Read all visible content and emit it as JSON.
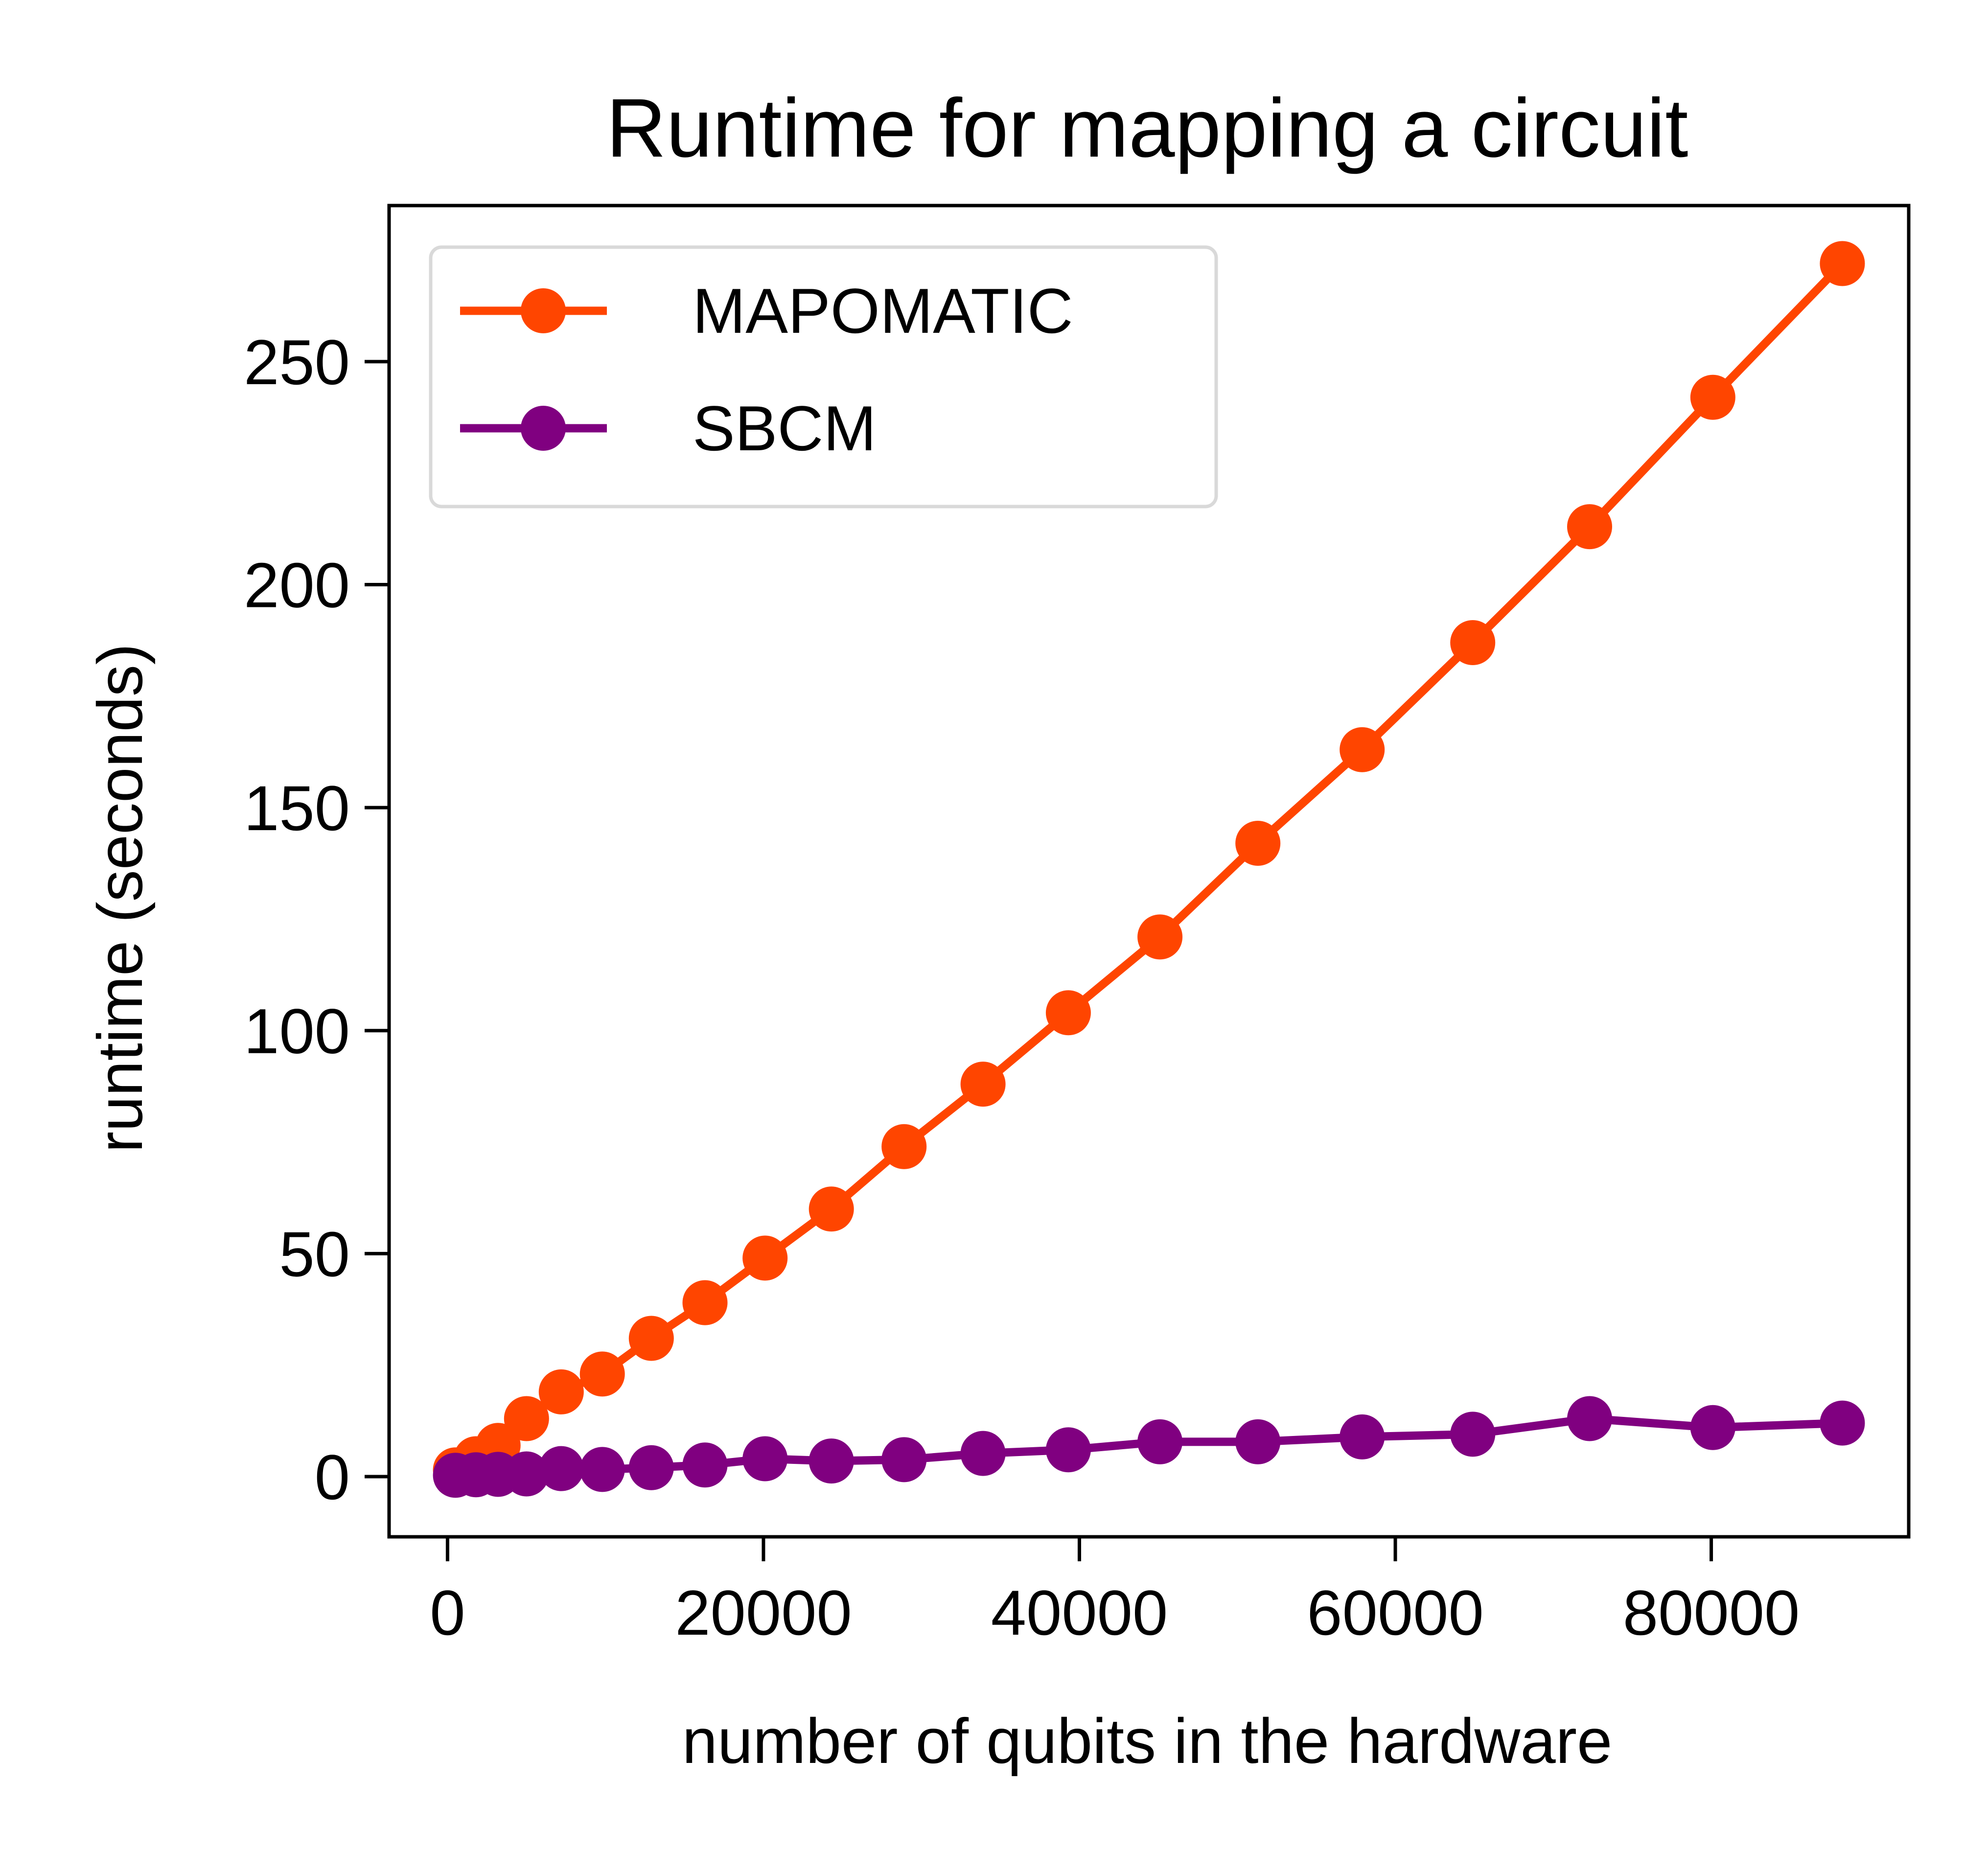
{
  "chart_data": {
    "type": "line",
    "title": "Runtime for mapping a circuit",
    "xlabel": "number of qubits in the hardware",
    "ylabel": "runtime (seconds)",
    "xlim": [
      -3700,
      92500
    ],
    "ylim": [
      -13.5,
      285
    ],
    "xticks": [
      0,
      20000,
      40000,
      60000,
      80000
    ],
    "xtick_labels": [
      "0",
      "20000",
      "40000",
      "60000",
      "80000"
    ],
    "yticks": [
      0,
      50,
      100,
      150,
      200,
      250
    ],
    "ytick_labels": [
      "0",
      "50",
      "100",
      "150",
      "200",
      "250"
    ],
    "grid": false,
    "legend_position": "upper left",
    "series": [
      {
        "name": "MAPOMATIC",
        "color": "#FF4500",
        "marker": "circle",
        "x": [
          500,
          1800,
          3200,
          5000,
          7200,
          9800,
          12900,
          16300,
          20100,
          24300,
          28900,
          33900,
          39300,
          45100,
          51300,
          57900,
          64900,
          72300,
          80100,
          88300
        ],
        "y": [
          1.5,
          4,
          7,
          13,
          19,
          23,
          31,
          39,
          49,
          60,
          74,
          88,
          104,
          121,
          142,
          163,
          187,
          213,
          242,
          272
        ]
      },
      {
        "name": "SBCM",
        "color": "#800080",
        "marker": "circle",
        "x": [
          500,
          1800,
          3200,
          5000,
          7200,
          9800,
          12900,
          16300,
          20100,
          24300,
          28900,
          33900,
          39300,
          45100,
          51300,
          57900,
          64900,
          72300,
          80100,
          88300
        ],
        "y": [
          0.3,
          0.4,
          0.5,
          0.6,
          1.8,
          1.6,
          2,
          2.6,
          4,
          3.5,
          3.8,
          5.2,
          6,
          7.8,
          7.8,
          8.9,
          9.5,
          13,
          11,
          12
        ]
      }
    ]
  }
}
